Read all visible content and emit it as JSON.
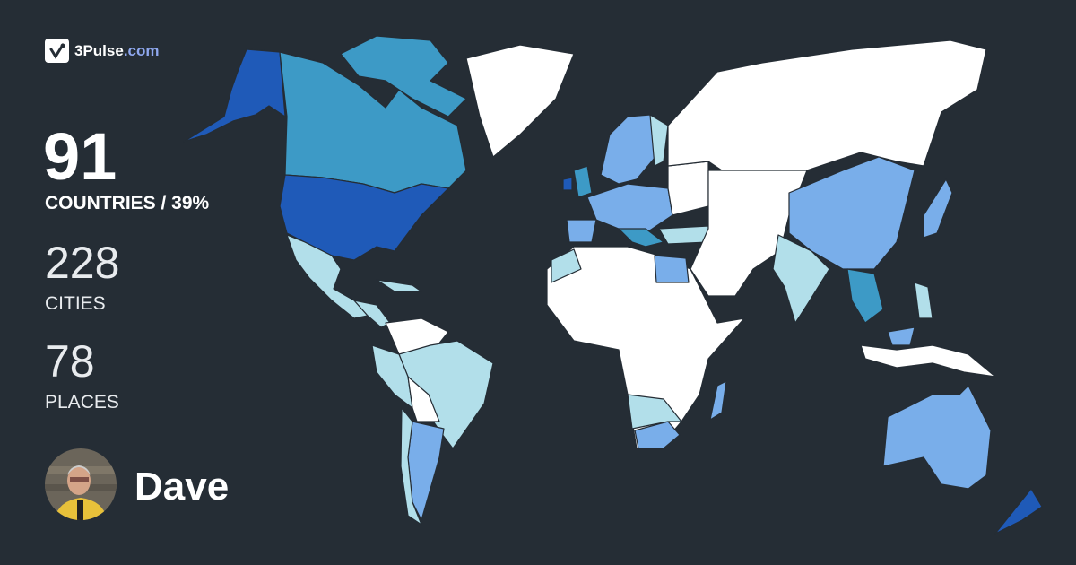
{
  "brand": {
    "name": "3Pulse",
    "domain": ".com"
  },
  "stats": {
    "countries": "91",
    "countries_label": "COUNTRIES / 39%",
    "cities": "228",
    "cities_label": "CITIES",
    "places": "78",
    "places_label": "PLACES"
  },
  "user": {
    "name": "Dave"
  },
  "colors": {
    "background": "#252d35",
    "unvisited": "#ffffff",
    "level1": "#b2dfea",
    "level2": "#79aeea",
    "level3": "#3d9ac6",
    "level4": "#1f5ab8"
  }
}
